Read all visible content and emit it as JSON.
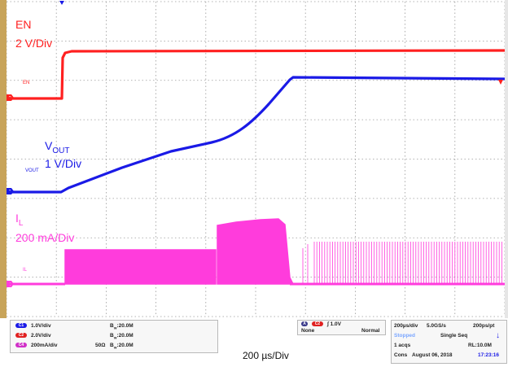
{
  "colors": {
    "screen_bg": "#ffffff",
    "grid": "#9a9a9a",
    "frame_left": "#c8a45a",
    "ch2_en": "#ff2020",
    "ch1_vout": "#1a1ae6",
    "ch4_il": "#ff3cdc"
  },
  "traces": {
    "en": {
      "label": "EN",
      "scale": "2 V/Div",
      "small_label": "EN",
      "marker": "2"
    },
    "vout": {
      "label_main": "V",
      "label_sub": "OUT",
      "scale": "1 V/Div",
      "small_label": "VOUT",
      "marker": "1"
    },
    "il": {
      "label_main": "I",
      "label_sub": "L",
      "scale": "200 mA/Div",
      "small_label": "IL",
      "marker": "4"
    }
  },
  "channels": [
    {
      "chip": "C1",
      "scale": "1.0V/div",
      "impedance": "",
      "bw": "B",
      "bw_sub": "W",
      "bw_val": ":20.0M",
      "color": "#1a1ae6"
    },
    {
      "chip": "C2",
      "scale": "2.0V/div",
      "impedance": "",
      "bw": "B",
      "bw_sub": "W",
      "bw_val": ":20.0M",
      "color": "#e02020"
    },
    {
      "chip": "C4",
      "scale": "200mA/div",
      "impedance": "50Ω",
      "bw": "B",
      "bw_sub": "W",
      "bw_val": ":20.0M",
      "color": "#d030c8"
    }
  ],
  "trigger": {
    "mode_chip": "A",
    "source": "C2",
    "slope": "∫",
    "level": "1.0V",
    "coupling": "None",
    "type": "Normal"
  },
  "acquisition": {
    "timebase": "200µs/div",
    "sample_rate": "5.0GS/s",
    "resolution": "200ps/pt",
    "state": "Stopped",
    "seq": "Single Seq",
    "acqs": "1 acqs",
    "record_length": "RL:10.0M",
    "cons": "Cons",
    "date": "August 06, 2018",
    "time": "17:23:16"
  },
  "timebase_label": "200 µs/Div"
}
